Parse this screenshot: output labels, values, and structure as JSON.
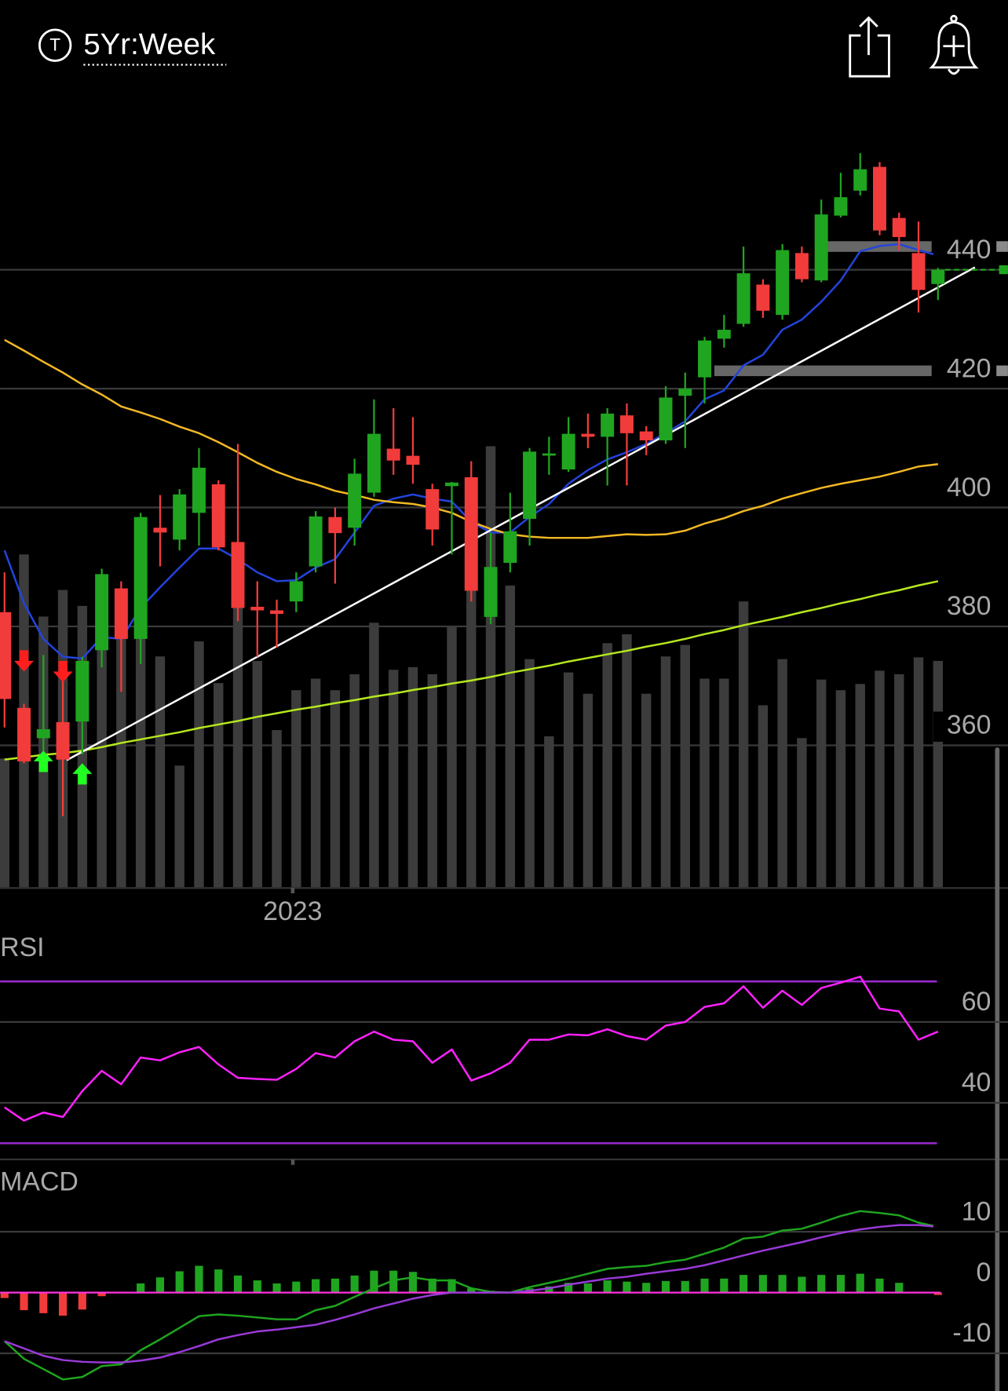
{
  "header": {
    "icon_letter": "T",
    "timeframe": "5Yr:Week"
  },
  "chart_data": [
    {
      "type": "candlestick",
      "categories": [
        null,
        null,
        null,
        null,
        null,
        null,
        null,
        null,
        null,
        null,
        null,
        null,
        null,
        null,
        null,
        "2023",
        null,
        null,
        null,
        null,
        null,
        null,
        null,
        null,
        null,
        null,
        null,
        null,
        null,
        null,
        null,
        null,
        null,
        null,
        null,
        null,
        null,
        null,
        null,
        null,
        null,
        null,
        null,
        null,
        null,
        null,
        null,
        null,
        null
      ],
      "open": [
        382.4,
        366.3,
        361.2,
        363.9,
        364.0,
        376.0,
        386.4,
        377.9,
        396.6,
        394.6,
        399.1,
        403.9,
        394.2,
        383.3,
        382.7,
        384.2,
        390.1,
        398.4,
        396.6,
        402.5,
        409.9,
        408.7,
        403.1,
        403.6,
        405.1,
        381.6,
        390.7,
        398.1,
        408.8,
        406.4,
        412.4,
        411.9,
        415.5,
        412.8,
        411.3,
        418.8,
        421.9,
        428.4,
        430.9,
        437.5,
        432.4,
        442.8,
        438.2,
        449.1,
        453.3,
        457.3,
        448.7,
        442.8,
        437.6
      ],
      "high": [
        389.1,
        367.0,
        375.2,
        371.2,
        374.9,
        389.7,
        387.6,
        399.1,
        402.1,
        403.1,
        410.0,
        404.6,
        410.7,
        387.6,
        384.5,
        389.1,
        399.4,
        400.0,
        408.2,
        418.2,
        416.7,
        415.2,
        404.0,
        404.3,
        407.8,
        395.8,
        402.5,
        410.0,
        411.9,
        415.2,
        415.8,
        416.7,
        417.5,
        413.7,
        420.4,
        422.7,
        428.7,
        432.4,
        443.9,
        438.4,
        444.3,
        443.9,
        451.8,
        456.3,
        459.6,
        458.1,
        449.6,
        448.1,
        440.3
      ],
      "low": [
        363.0,
        357.0,
        355.5,
        348.1,
        358.5,
        373.1,
        369.0,
        373.7,
        390.1,
        392.8,
        393.6,
        392.8,
        380.9,
        374.9,
        376.4,
        382.4,
        389.1,
        387.2,
        393.6,
        401.8,
        405.5,
        404.0,
        393.6,
        392.1,
        384.2,
        380.4,
        389.1,
        393.6,
        405.5,
        406.0,
        410.0,
        403.7,
        403.7,
        408.8,
        410.7,
        410.0,
        417.5,
        426.9,
        430.4,
        431.9,
        431.6,
        437.9,
        437.9,
        448.8,
        452.5,
        445.8,
        443.3,
        432.8,
        434.9
      ],
      "close": [
        367.8,
        357.3,
        362.7,
        357.6,
        374.2,
        388.8,
        377.9,
        398.4,
        395.8,
        402.2,
        406.7,
        393.3,
        383.1,
        382.7,
        382.1,
        387.6,
        398.5,
        395.7,
        405.7,
        412.4,
        407.9,
        407.2,
        396.3,
        404.2,
        386.0,
        390.0,
        396.0,
        409.4,
        409.1,
        412.4,
        411.9,
        415.8,
        412.5,
        411.3,
        418.5,
        420.0,
        428.1,
        429.9,
        439.4,
        433.1,
        443.3,
        438.4,
        449.3,
        452.2,
        456.9,
        446.6,
        445.5,
        436.6,
        440.0
      ],
      "up_color": "#20a520",
      "down_color": "#f23b3b",
      "volume": {
        "color": "#3c3c3c",
        "values": [
          145,
          375,
          305,
          335,
          317,
          350,
          300,
          285,
          260,
          137,
          277,
          230,
          360,
          255,
          177,
          222,
          235,
          222,
          240,
          298,
          245,
          248,
          240,
          293,
          455,
          497,
          340,
          257,
          170,
          242,
          218,
          275,
          285,
          218,
          260,
          273,
          235,
          235,
          322,
          205,
          257,
          168,
          234,
          222,
          229,
          244,
          240,
          259,
          255
        ]
      },
      "series": [
        {
          "color": "#2244dd",
          "values": [
            392.8,
            383.9,
            377.9,
            374.9,
            374.6,
            378.2,
            377.9,
            383.1,
            386.6,
            389.9,
            393.1,
            393.1,
            391.3,
            389.1,
            387.6,
            387.8,
            389.9,
            391.3,
            395.8,
            400.3,
            401.5,
            402.2,
            401.5,
            401.0,
            397.6,
            395.8,
            395.8,
            398.4,
            400.6,
            404.0,
            406.3,
            408.1,
            409.3,
            410.7,
            412.5,
            414.5,
            418.2,
            419.7,
            423.9,
            425.7,
            429.9,
            431.6,
            434.6,
            438.2,
            443.1,
            444.0,
            444.3,
            443.3,
            442.4
          ]
        },
        {
          "color": "#f2b824",
          "values": [
            428.2,
            426.4,
            424.5,
            422.7,
            420.7,
            419.0,
            417.0,
            416.0,
            414.9,
            413.6,
            412.5,
            411.0,
            409.3,
            407.5,
            406.0,
            404.8,
            403.9,
            402.8,
            402.1,
            401.3,
            400.9,
            400.6,
            400.0,
            399.1,
            397.6,
            396.4,
            395.5,
            395.1,
            394.9,
            394.9,
            394.9,
            395.2,
            395.5,
            395.4,
            395.5,
            396.1,
            397.3,
            398.2,
            399.4,
            400.3,
            401.5,
            402.4,
            403.3,
            404.0,
            404.6,
            405.2,
            406.0,
            406.9,
            407.3
          ]
        },
        {
          "color": "#b6e81e",
          "values": [
            357.6,
            358.0,
            358.4,
            358.7,
            359.1,
            359.7,
            360.4,
            361.0,
            361.6,
            362.2,
            362.9,
            363.5,
            364.1,
            364.8,
            365.4,
            366.0,
            366.5,
            367.1,
            367.6,
            368.2,
            368.7,
            369.3,
            369.8,
            370.4,
            370.9,
            371.5,
            372.2,
            372.8,
            373.4,
            374.1,
            374.7,
            375.3,
            375.9,
            376.6,
            377.2,
            377.9,
            378.7,
            379.4,
            380.2,
            380.9,
            381.6,
            382.4,
            383.1,
            383.9,
            384.6,
            385.4,
            386.1,
            386.9,
            387.6
          ]
        }
      ],
      "trendline": {
        "color": "#ffffff",
        "x": [
          3.2,
          49.9
        ],
        "y": [
          357.5,
          440.4
        ]
      },
      "levels": [
        {
          "value": 443.9,
          "start": 42.1
        },
        {
          "value": 423.0,
          "start": 36.5
        }
      ],
      "level_color": "#8a8a8a",
      "signals": [
        {
          "index": 1,
          "value": 374.2,
          "direction": "down",
          "color": "#ff1e1e"
        },
        {
          "index": 3,
          "value": 372.4,
          "direction": "down",
          "color": "#ff1e1e"
        },
        {
          "index": 2,
          "value": 357.3,
          "direction": "up",
          "color": "#22ff22"
        },
        {
          "index": 4,
          "value": 355.2,
          "direction": "up",
          "color": "#22ff22"
        }
      ],
      "ylim": [
        336,
        470
      ],
      "yticks": [
        360,
        380,
        400,
        420,
        440
      ],
      "grid": true
    },
    {
      "type": "line",
      "title": "RSI",
      "series": [
        {
          "color": "#ff22ff",
          "values": [
            38.9,
            35.6,
            37.6,
            36.5,
            42.9,
            47.9,
            44.6,
            51.2,
            50.5,
            52.5,
            53.8,
            49.5,
            46.2,
            45.9,
            45.7,
            48.4,
            52.3,
            51.2,
            55.2,
            57.6,
            55.6,
            55.2,
            49.9,
            53.2,
            45.5,
            47.3,
            49.9,
            55.6,
            55.6,
            56.9,
            56.7,
            58.2,
            56.5,
            55.6,
            59.1,
            60.0,
            63.7,
            64.6,
            68.8,
            63.5,
            67.7,
            64.2,
            68.4,
            69.7,
            71.2,
            63.3,
            62.6,
            55.6,
            57.6
          ]
        }
      ],
      "levels": [
        30,
        70
      ],
      "level_color": "#9a2ad0",
      "ylim": [
        26,
        76
      ],
      "yticks": [
        40,
        60
      ],
      "grid": true
    },
    {
      "type": "macd",
      "title": "MACD",
      "histogram": {
        "up_color": "#20a520",
        "down_color": "#f23b3b",
        "values": [
          -0.9,
          -2.9,
          -3.4,
          -3.8,
          -2.8,
          -0.6,
          0,
          1.5,
          2.5,
          3.5,
          4.4,
          3.8,
          2.8,
          2.0,
          1.5,
          1.8,
          2.2,
          2.3,
          2.8,
          3.6,
          3.6,
          3.4,
          2.3,
          2.2,
          0.7,
          0.3,
          0.1,
          0.7,
          1.0,
          1.6,
          1.5,
          2.0,
          1.8,
          1.6,
          1.9,
          1.9,
          2.3,
          2.3,
          2.9,
          2.9,
          2.9,
          2.6,
          2.9,
          2.9,
          3.1,
          2.3,
          1.6,
          0.1,
          -0.4
        ]
      },
      "series": [
        {
          "color": "#1fa51f",
          "values": [
            -8.0,
            -10.9,
            -12.6,
            -14.3,
            -13.9,
            -12.1,
            -11.8,
            -9.5,
            -7.7,
            -5.8,
            -3.9,
            -3.6,
            -3.8,
            -4.1,
            -4.4,
            -4.4,
            -2.9,
            -2.2,
            -0.7,
            0.7,
            2.0,
            2.5,
            2.0,
            2.0,
            0.7,
            0.1,
            0.0,
            0.9,
            1.6,
            2.3,
            3.1,
            3.9,
            4.2,
            4.4,
            5.0,
            5.4,
            6.4,
            7.4,
            8.9,
            9.2,
            10.2,
            10.5,
            11.5,
            12.6,
            13.4,
            13.1,
            12.7,
            11.5,
            10.8
          ]
        },
        {
          "color": "#9a3ad8",
          "values": [
            -8.0,
            -9.2,
            -10.4,
            -11.1,
            -11.4,
            -11.5,
            -11.5,
            -11.2,
            -10.7,
            -9.8,
            -8.8,
            -7.7,
            -7.0,
            -6.4,
            -6.1,
            -5.7,
            -5.3,
            -4.5,
            -3.6,
            -2.6,
            -1.8,
            -1.0,
            -0.4,
            0.0,
            0.0,
            0.0,
            0.0,
            0.3,
            0.7,
            1.3,
            1.8,
            2.3,
            2.6,
            3.1,
            3.5,
            3.9,
            4.5,
            5.3,
            6.1,
            6.9,
            7.6,
            8.3,
            9.1,
            9.8,
            10.4,
            10.8,
            11.1,
            11.1,
            10.8
          ]
        }
      ],
      "zero_line_color": "#ff33dd",
      "ylim": [
        -16.2,
        21.9
      ],
      "yticks": [
        -10,
        0,
        10
      ],
      "grid": true
    }
  ]
}
